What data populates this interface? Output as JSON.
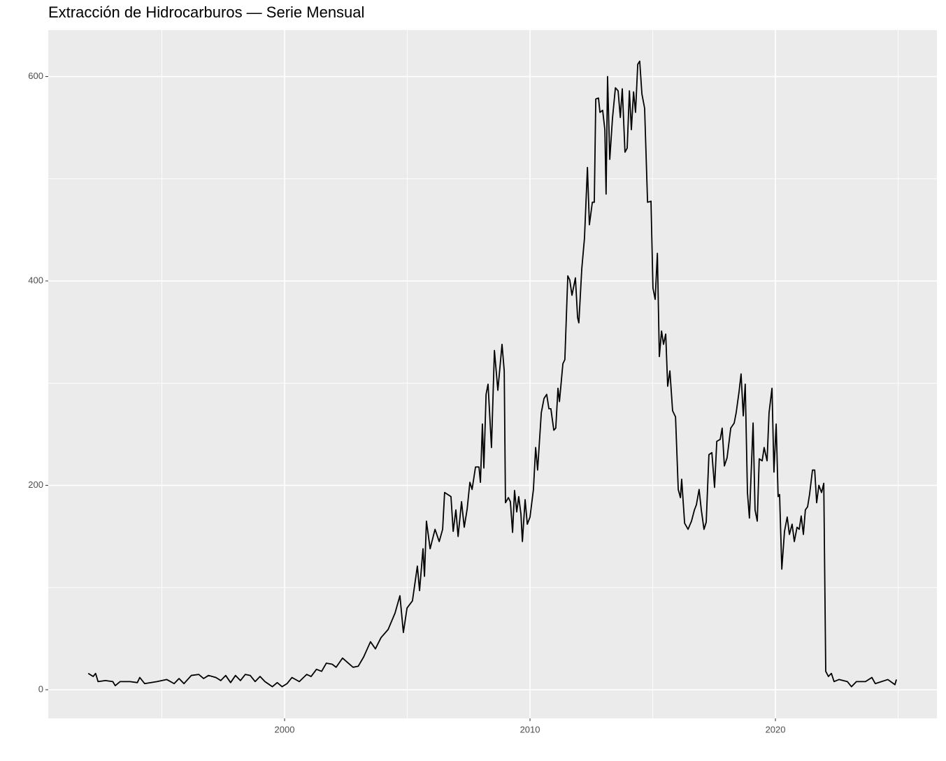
{
  "chart_data": {
    "type": "line",
    "title": "Extracción de Hidrocarburos — Serie Mensual",
    "x": [
      1992.0,
      1992.2,
      1992.3,
      1992.4,
      1992.7,
      1993.0,
      1993.1,
      1993.3,
      1993.7,
      1994.0,
      1994.1,
      1994.3,
      1994.8,
      1995.2,
      1995.5,
      1995.7,
      1995.9,
      1996.2,
      1996.5,
      1996.7,
      1996.9,
      1997.2,
      1997.4,
      1997.6,
      1997.8,
      1998.0,
      1998.2,
      1998.4,
      1998.6,
      1998.8,
      1999.0,
      1999.2,
      1999.5,
      1999.7,
      1999.9,
      2000.1,
      2000.3,
      2000.6,
      2000.9,
      2001.08,
      2001.3,
      2001.51,
      2001.7,
      2001.94,
      2002.1,
      2002.36,
      2002.6,
      2002.79,
      2003.0,
      2003.22,
      2003.5,
      2003.7,
      2003.93,
      2004.22,
      2004.5,
      2004.7,
      2004.84,
      2004.99,
      2005.21,
      2005.41,
      2005.5,
      2005.64,
      2005.7,
      2005.78,
      2005.93,
      2006.13,
      2006.3,
      2006.44,
      2006.52,
      2006.78,
      2006.87,
      2006.98,
      2007.07,
      2007.21,
      2007.32,
      2007.44,
      2007.55,
      2007.64,
      2007.78,
      2007.92,
      2007.98,
      2008.06,
      2008.12,
      2008.21,
      2008.29,
      2008.43,
      2008.55,
      2008.69,
      2008.86,
      2008.95,
      2009.0,
      2009.12,
      2009.2,
      2009.29,
      2009.37,
      2009.46,
      2009.54,
      2009.63,
      2009.69,
      2009.8,
      2009.89,
      2010.0,
      2010.14,
      2010.23,
      2010.31,
      2010.46,
      2010.57,
      2010.68,
      2010.77,
      2010.85,
      2010.97,
      2011.05,
      2011.14,
      2011.2,
      2011.34,
      2011.42,
      2011.54,
      2011.62,
      2011.71,
      2011.85,
      2011.94,
      2011.99,
      2012.11,
      2012.22,
      2012.34,
      2012.42,
      2012.54,
      2012.62,
      2012.68,
      2012.79,
      2012.85,
      2012.96,
      2013.05,
      2013.1,
      2013.16,
      2013.25,
      2013.36,
      2013.48,
      2013.59,
      2013.68,
      2013.76,
      2013.87,
      2013.96,
      2014.05,
      2014.13,
      2014.22,
      2014.3,
      2014.39,
      2014.47,
      2014.56,
      2014.67,
      2014.79,
      2014.93,
      2015.01,
      2015.1,
      2015.19,
      2015.27,
      2015.36,
      2015.44,
      2015.53,
      2015.61,
      2015.7,
      2015.81,
      2015.93,
      2016.04,
      2016.13,
      2016.18,
      2016.3,
      2016.44,
      2016.58,
      2016.7,
      2016.78,
      2016.89,
      2016.98,
      2017.09,
      2017.18,
      2017.29,
      2017.41,
      2017.52,
      2017.61,
      2017.75,
      2017.83,
      2017.92,
      2018.03,
      2018.18,
      2018.32,
      2018.4,
      2018.52,
      2018.6,
      2018.69,
      2018.77,
      2018.86,
      2018.94,
      2019.09,
      2019.17,
      2019.26,
      2019.34,
      2019.46,
      2019.54,
      2019.66,
      2019.74,
      2019.86,
      2019.94,
      2020.03,
      2020.11,
      2020.17,
      2020.26,
      2020.37,
      2020.48,
      2020.57,
      2020.68,
      2020.77,
      2020.88,
      2020.97,
      2021.05,
      2021.14,
      2021.22,
      2021.31,
      2021.39,
      2021.51,
      2021.6,
      2021.68,
      2021.77,
      2021.88,
      2021.97,
      2022.05,
      2022.16,
      2022.28,
      2022.39,
      2022.59,
      2022.93,
      2023.1,
      2023.3,
      2023.67,
      2023.93,
      2024.07,
      2024.58,
      2024.87,
      2024.93
    ],
    "series": [
      {
        "color": "#000000",
        "values": [
          16,
          13,
          16,
          8,
          9,
          8,
          4,
          8,
          8,
          7,
          12,
          6,
          8,
          10,
          6,
          11,
          6,
          14,
          15,
          11,
          14,
          12,
          9,
          14,
          7,
          14,
          9,
          15,
          14,
          8,
          13,
          8,
          3,
          7,
          3,
          6,
          12,
          8,
          15,
          13,
          20,
          18,
          26,
          25,
          22,
          31,
          26,
          22,
          23,
          32,
          47,
          40,
          51,
          59,
          75,
          92,
          56,
          80,
          87,
          121,
          97,
          138,
          111,
          165,
          138,
          157,
          145,
          157,
          193,
          189,
          155,
          176,
          150,
          184,
          159,
          177,
          203,
          196,
          218,
          218,
          203,
          260,
          217,
          289,
          299,
          237,
          332,
          293,
          338,
          312,
          183,
          188,
          184,
          154,
          195,
          174,
          189,
          172,
          145,
          186,
          162,
          169,
          196,
          237,
          215,
          271,
          285,
          289,
          275,
          275,
          254,
          256,
          295,
          282,
          319,
          323,
          405,
          401,
          386,
          403,
          364,
          359,
          412,
          442,
          511,
          455,
          477,
          477,
          578,
          579,
          565,
          567,
          548,
          485,
          600,
          519,
          559,
          589,
          586,
          560,
          588,
          526,
          530,
          586,
          548,
          585,
          565,
          612,
          615,
          583,
          569,
          477,
          478,
          393,
          382,
          427,
          326,
          351,
          338,
          348,
          297,
          312,
          273,
          267,
          196,
          188,
          206,
          163,
          157,
          165,
          176,
          181,
          196,
          176,
          157,
          164,
          230,
          232,
          198,
          243,
          245,
          256,
          219,
          227,
          256,
          261,
          271,
          292,
          309,
          268,
          299,
          193,
          168,
          261,
          176,
          165,
          226,
          224,
          237,
          224,
          271,
          295,
          213,
          260,
          189,
          191,
          118,
          155,
          169,
          152,
          162,
          145,
          159,
          157,
          170,
          152,
          176,
          179,
          191,
          215,
          215,
          183,
          200,
          193,
          202,
          18,
          13,
          16,
          8,
          10,
          8,
          3,
          8,
          8,
          12,
          6,
          10,
          5,
          10
        ]
      }
    ],
    "xlim": [
      1990.37,
      2026.58
    ],
    "ylim": [
      -28,
      645.5
    ],
    "xticks": [
      2000,
      2010,
      2020
    ],
    "yticks": [
      0,
      200,
      400,
      600
    ],
    "minor_xticks": [
      1995,
      2005,
      2015,
      2025
    ],
    "minor_yticks": [
      100,
      300,
      500
    ],
    "grid": true,
    "panel_color": "#ebebeb"
  }
}
